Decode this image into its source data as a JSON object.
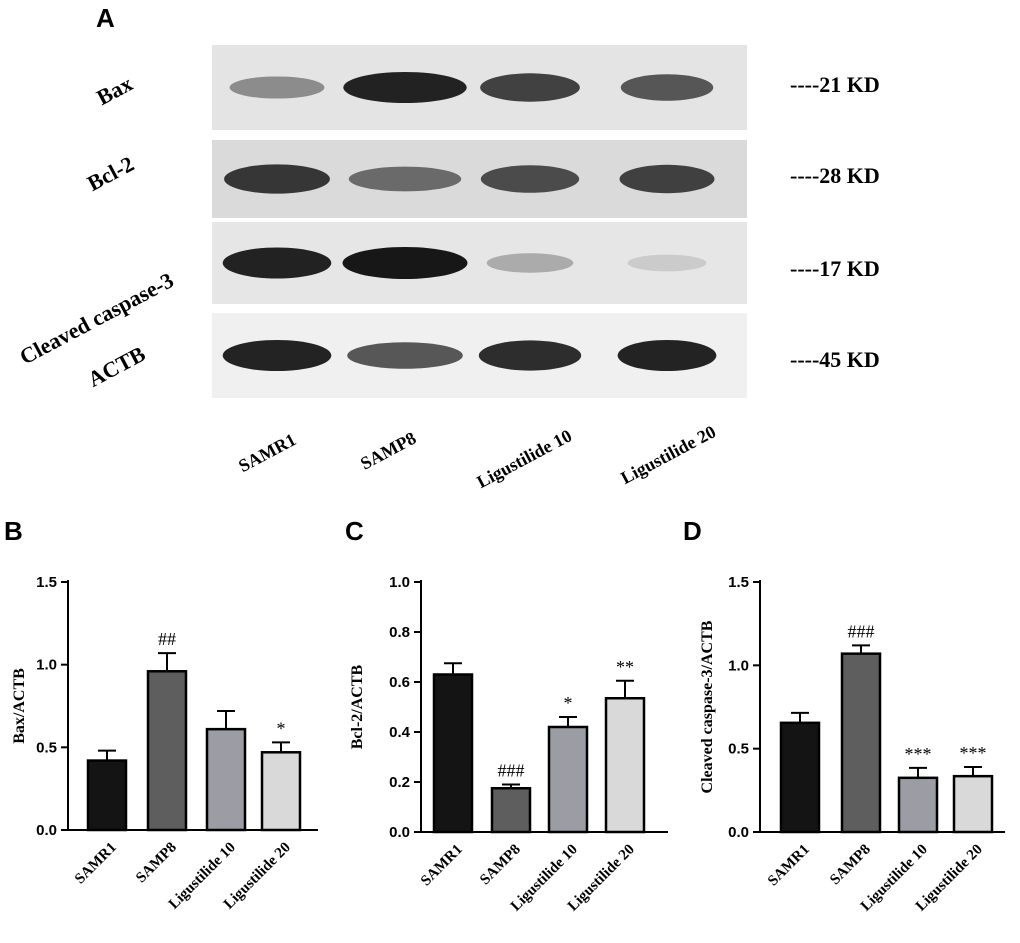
{
  "panel_A": {
    "letter": "A",
    "blots": [
      {
        "protein": "Bax",
        "kd": "----21 KD",
        "intensities": [
          0.45,
          0.95,
          0.8,
          0.7
        ],
        "background": "#e4e4e4"
      },
      {
        "protein": "Bcl-2",
        "kd": "----28 KD",
        "intensities": [
          0.85,
          0.6,
          0.75,
          0.8
        ],
        "background": "#dadada"
      },
      {
        "protein": "Cleaved caspase-3",
        "kd": "----17 KD",
        "intensities": [
          0.95,
          1.0,
          0.3,
          0.15
        ],
        "background": "#e6e6e6"
      },
      {
        "protein": "ACTB",
        "kd": "----45 KD",
        "intensities": [
          0.95,
          0.7,
          0.9,
          0.95
        ],
        "background": "#f0f0f0"
      }
    ],
    "lanes": [
      "SAMR1",
      "SAMP8",
      "Ligustilide 10",
      "Ligustilide 20"
    ]
  },
  "chart_data": [
    {
      "panel": "B",
      "type": "bar",
      "categories": [
        "SAMR1",
        "SAMP8",
        "Ligustilide 10",
        "Ligustilide 20"
      ],
      "values": [
        0.42,
        0.96,
        0.61,
        0.47
      ],
      "errors": [
        0.06,
        0.11,
        0.11,
        0.06
      ],
      "significance": [
        "",
        "##",
        "",
        "*"
      ],
      "ylabel": "Bax/ACTB",
      "ylim": [
        0,
        1.5
      ],
      "yticks": [
        0.0,
        0.5,
        1.0,
        1.5
      ],
      "tick_labels": [
        "0.0",
        "0.5",
        "1.0",
        "1.5"
      ],
      "colors": [
        "#141414",
        "#5e5e5e",
        "#9c9ca4",
        "#d9d9d9"
      ]
    },
    {
      "panel": "C",
      "type": "bar",
      "categories": [
        "SAMR1",
        "SAMP8",
        "Ligustilide 10",
        "Ligustilide 20"
      ],
      "values": [
        0.63,
        0.175,
        0.42,
        0.535
      ],
      "errors": [
        0.045,
        0.015,
        0.04,
        0.07
      ],
      "significance": [
        "",
        "###",
        "*",
        "**"
      ],
      "ylabel": "Bcl-2/ACTB",
      "ylim": [
        0,
        1.0
      ],
      "yticks": [
        0.0,
        0.2,
        0.4,
        0.6,
        0.8,
        1.0
      ],
      "tick_labels": [
        "0.0",
        "0.2",
        "0.4",
        "0.6",
        "0.8",
        "1.0"
      ],
      "colors": [
        "#141414",
        "#5e5e5e",
        "#9c9ca4",
        "#d9d9d9"
      ]
    },
    {
      "panel": "D",
      "type": "bar",
      "categories": [
        "SAMR1",
        "SAMP8",
        "Ligustilide 10",
        "Ligustilide 20"
      ],
      "values": [
        0.655,
        1.07,
        0.325,
        0.335
      ],
      "errors": [
        0.06,
        0.05,
        0.06,
        0.055
      ],
      "significance": [
        "",
        "###",
        "***",
        "***"
      ],
      "ylabel": "Cleaved caspase-3/ACTB",
      "ylim": [
        0,
        1.5
      ],
      "yticks": [
        0.0,
        0.5,
        1.0,
        1.5
      ],
      "tick_labels": [
        "0.0",
        "0.5",
        "1.0",
        "1.5"
      ],
      "colors": [
        "#141414",
        "#5e5e5e",
        "#9c9ca4",
        "#d9d9d9"
      ]
    }
  ]
}
